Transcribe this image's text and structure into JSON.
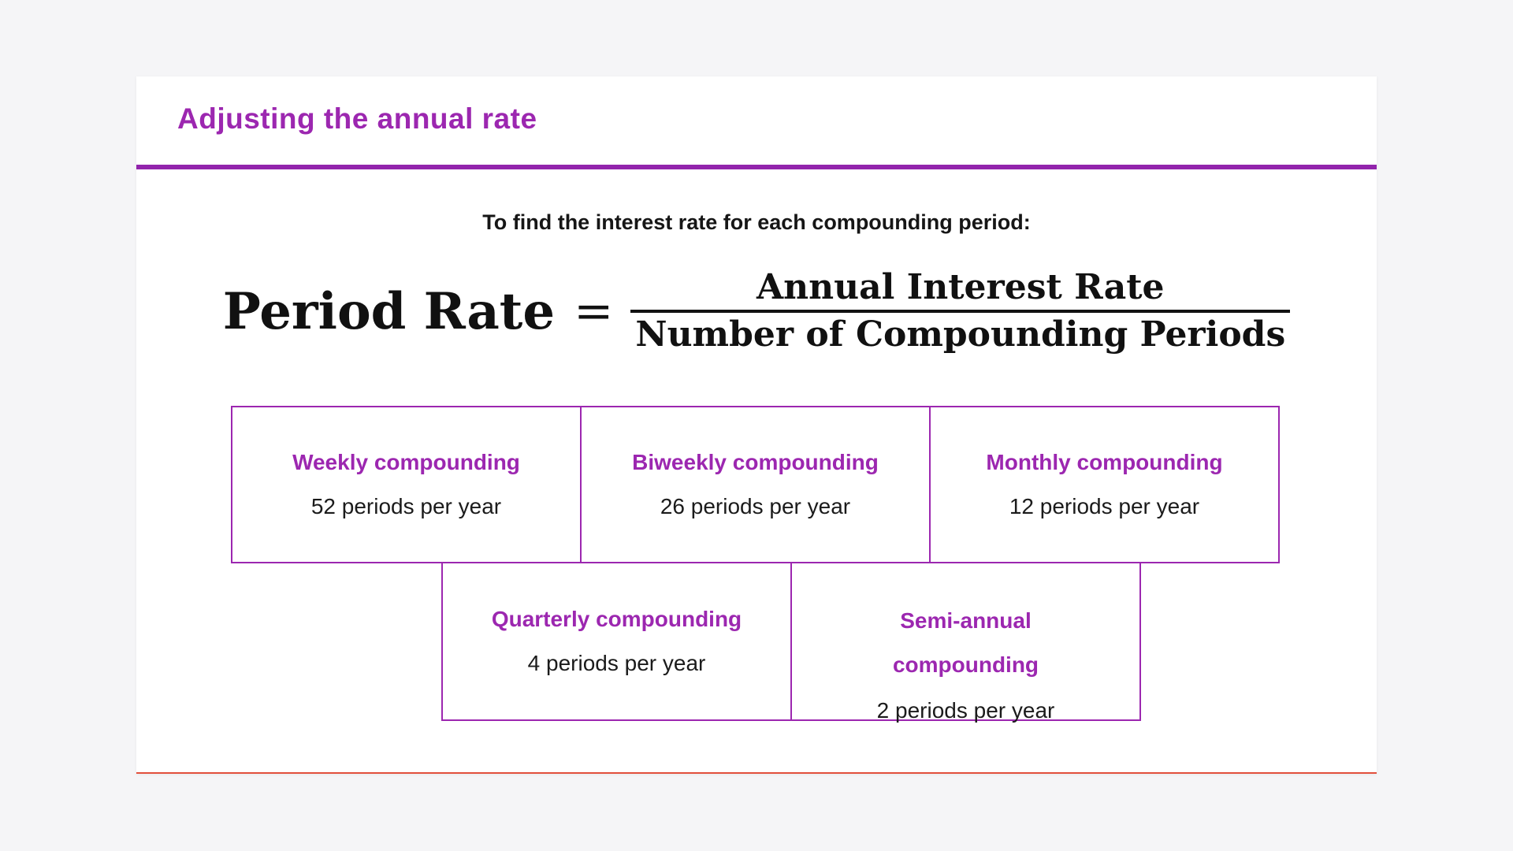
{
  "colors": {
    "accent_purple": "#9c27b0",
    "divider_purple": "#9224ac",
    "bottom_line_red": "#e2503c",
    "text_black": "#161616",
    "page_background": "#f5f5f7"
  },
  "card": {
    "title": "Adjusting the annual rate",
    "subtitle": "To find the interest rate for each compounding period:"
  },
  "formula": {
    "lhs": "Period Rate",
    "equals": "=",
    "numerator": "Annual Interest Rate",
    "denominator": "Number of Compounding Periods"
  },
  "boxes": {
    "top_row": [
      {
        "title": "Weekly compounding",
        "value": "52 periods per year"
      },
      {
        "title": "Biweekly compounding",
        "value": "26 periods per year"
      },
      {
        "title": "Monthly compounding",
        "value": "12 periods per year"
      }
    ],
    "bottom_row": [
      {
        "title": "Quarterly compounding",
        "value": "4 periods per year"
      },
      {
        "title": "Semi-annual compounding",
        "value": "2 periods per year"
      }
    ]
  }
}
